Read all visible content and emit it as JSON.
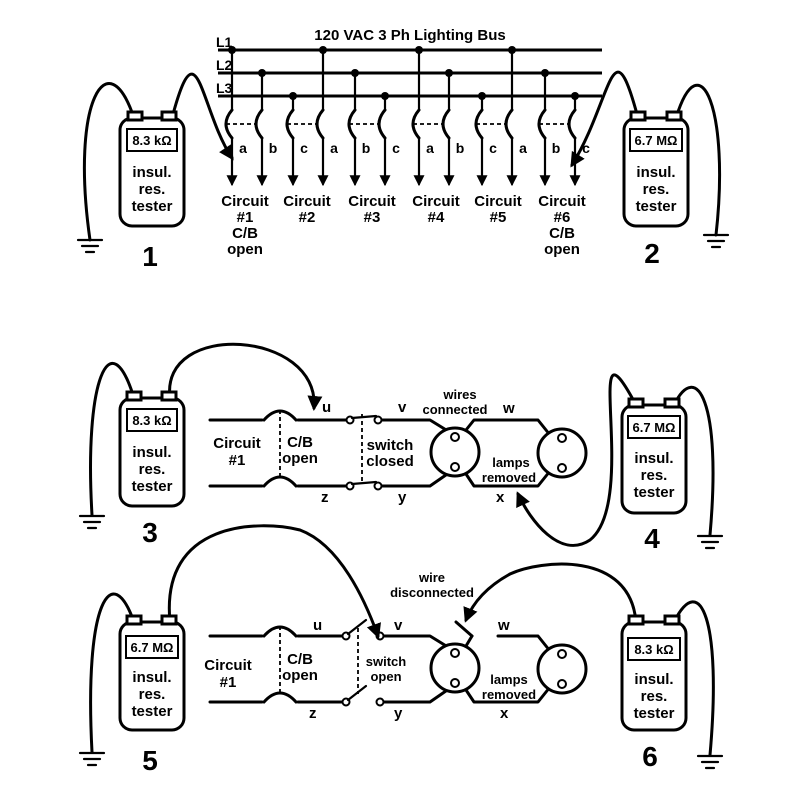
{
  "title": "120 VAC 3 Ph Lighting Bus",
  "bus_lines": [
    "L1",
    "L2",
    "L3"
  ],
  "tester_text": "insul.\nres.\ntester",
  "panel1": {
    "number": "1",
    "left_meter": "8.3 kΩ",
    "right_meter": "6.7 MΩ",
    "right_number": "2",
    "circuits": [
      {
        "label": "Circuit\n#1\nC/B\nopen",
        "phases": [
          "a",
          "b"
        ]
      },
      {
        "label": "Circuit\n#2",
        "phases": [
          "c",
          "a"
        ]
      },
      {
        "label": "Circuit\n#3",
        "phases": [
          "b",
          "c"
        ]
      },
      {
        "label": "Circuit\n#4",
        "phases": [
          "a",
          "b"
        ]
      },
      {
        "label": "Circuit\n#5",
        "phases": [
          "c",
          "a"
        ]
      },
      {
        "label": "Circuit\n#6\nC/B\nopen",
        "phases": [
          "b",
          "c"
        ]
      }
    ]
  },
  "panel2": {
    "left_number": "3",
    "right_number": "4",
    "left_meter": "8.3 kΩ",
    "right_meter": "6.7 MΩ",
    "circuit_label": "Circuit\n#1",
    "cb_label": "C/B\nopen",
    "switch_label": "switch\nclosed",
    "wires_label": "wires\nconnected",
    "lamps_label": "lamps\nremoved",
    "nodes": {
      "u": "u",
      "v": "v",
      "w": "w",
      "x": "x",
      "y": "y",
      "z": "z"
    }
  },
  "panel3": {
    "left_number": "5",
    "right_number": "6",
    "left_meter": "6.7 MΩ",
    "right_meter": "8.3 kΩ",
    "circuit_label": "Circuit\n#1",
    "cb_label": "C/B\nopen",
    "switch_label": "switch\nopen",
    "wire_label": "wire\ndisconnected",
    "lamps_label": "lamps\nremoved",
    "nodes": {
      "u": "u",
      "v": "v",
      "w": "w",
      "x": "x",
      "y": "y",
      "z": "z"
    }
  }
}
